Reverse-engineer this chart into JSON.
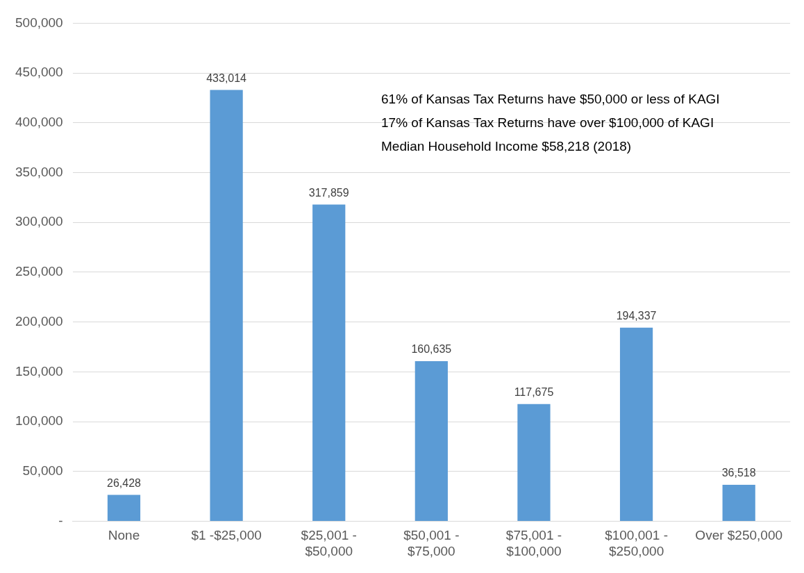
{
  "chart_data": {
    "type": "bar",
    "categories": [
      "None",
      "$1 -$25,000",
      "$25,001 - $50,000",
      "$50,001 - $75,000",
      "$75,001 - $100,000",
      "$100,001 - $250,000",
      "Over $250,000"
    ],
    "values": [
      26428,
      433014,
      317859,
      160635,
      117675,
      194337,
      36518
    ],
    "color": "#5b9bd5",
    "ylim": [
      0,
      500000
    ],
    "value_labels": [
      "26,428",
      "433,014",
      "317,859",
      "160,635",
      "117,675",
      "194,337",
      "36,518"
    ],
    "yticks": [
      {
        "value": 0,
        "label": "-"
      },
      {
        "value": 50000,
        "label": "50,000"
      },
      {
        "value": 100000,
        "label": "100,000"
      },
      {
        "value": 150000,
        "label": "150,000"
      },
      {
        "value": 200000,
        "label": "200,000"
      },
      {
        "value": 250000,
        "label": "250,000"
      },
      {
        "value": 300000,
        "label": "300,000"
      },
      {
        "value": 350000,
        "label": "350,000"
      },
      {
        "value": 400000,
        "label": "400,000"
      },
      {
        "value": 450000,
        "label": "450,000"
      },
      {
        "value": 500000,
        "label": "500,000"
      }
    ],
    "grid": "y",
    "legend": false,
    "annotations": [
      "61% of Kansas Tax Returns have $50,000 or less of KAGI",
      "17% of Kansas Tax Returns have over $100,000 of KAGI",
      "Median Household Income $58,218 (2018)"
    ]
  }
}
